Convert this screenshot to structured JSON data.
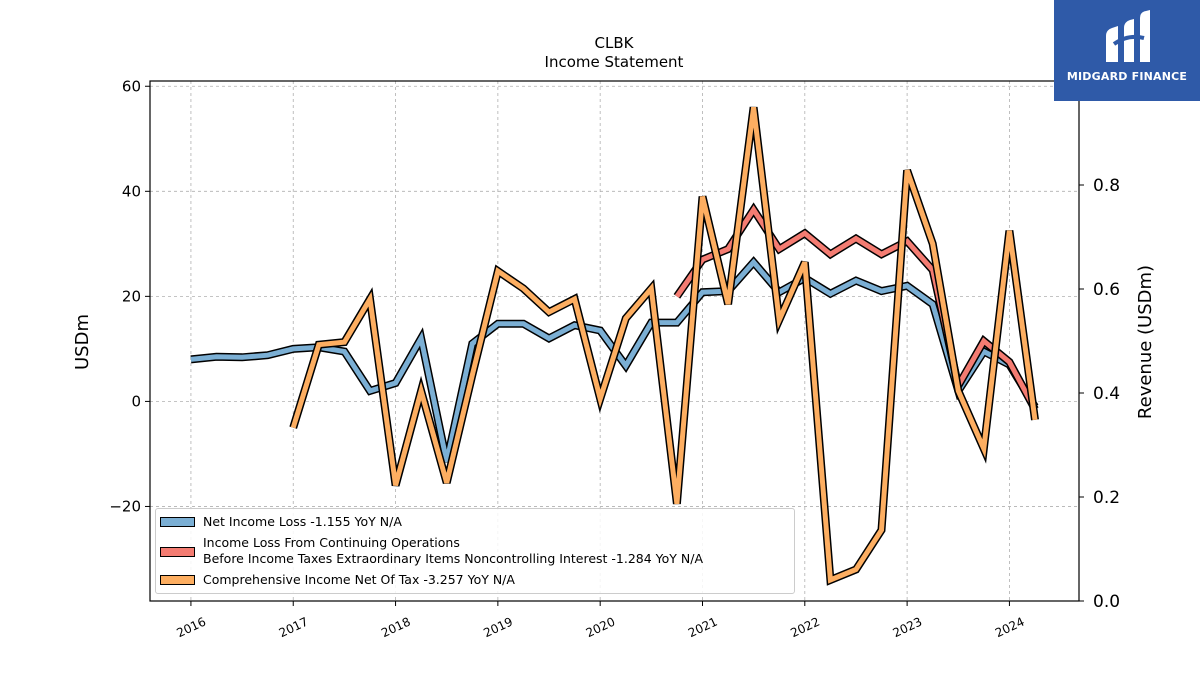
{
  "chart_data": {
    "type": "line",
    "title": "CLBK",
    "subtitle": "Income Statement",
    "ylabel_left": "USDm",
    "ylabel_right": "Revenue (USDm)",
    "ylim_left": [
      -38,
      61
    ],
    "ylim_right": [
      0.0,
      1.0
    ],
    "yticks_left": [
      "60",
      "40",
      "20",
      "0",
      "−20"
    ],
    "yticks_right": [
      "0.8",
      "0.6",
      "0.4",
      "0.2",
      "0.0"
    ],
    "xticks": [
      "2016",
      "2017",
      "2018",
      "2019",
      "2020",
      "2021",
      "2022",
      "2023",
      "2024"
    ],
    "xlim": [
      2015.6,
      2024.68
    ],
    "grid": true,
    "legend_position": "lower-left",
    "series": [
      {
        "name": "Net Income Loss",
        "legend_label": "Net Income Loss  -1.155 YoY N/A",
        "color": "#7bafd4",
        "points": [
          [
            2016.0,
            8.0
          ],
          [
            2016.25,
            8.5
          ],
          [
            2016.5,
            8.4
          ],
          [
            2016.75,
            8.8
          ],
          [
            2017.0,
            10.0
          ],
          [
            2017.25,
            10.3
          ],
          [
            2017.5,
            9.5
          ],
          [
            2017.75,
            2.0
          ],
          [
            2018.0,
            3.5
          ],
          [
            2018.25,
            12.0
          ],
          [
            2018.5,
            -11.5
          ],
          [
            2018.75,
            11.0
          ],
          [
            2019.0,
            14.8
          ],
          [
            2019.25,
            14.8
          ],
          [
            2019.5,
            12.0
          ],
          [
            2019.75,
            14.5
          ],
          [
            2020.0,
            13.5
          ],
          [
            2020.25,
            6.8
          ],
          [
            2020.5,
            15.0
          ],
          [
            2020.75,
            15.0
          ],
          [
            2021.0,
            20.8
          ],
          [
            2021.25,
            21.0
          ],
          [
            2021.5,
            26.5
          ],
          [
            2021.75,
            20.8
          ],
          [
            2022.0,
            23.5
          ],
          [
            2022.25,
            20.5
          ],
          [
            2022.5,
            23.0
          ],
          [
            2022.75,
            21.0
          ],
          [
            2023.0,
            22.0
          ],
          [
            2023.25,
            18.5
          ],
          [
            2023.5,
            2.0
          ],
          [
            2023.75,
            9.5
          ],
          [
            2024.0,
            7.0
          ],
          [
            2024.25,
            -1.0
          ]
        ]
      },
      {
        "name": "Income Loss From Continuing Operations Before Income Taxes Extraordinary Items Noncontrolling Interest",
        "legend_label_line1": "Income Loss From Continuing Operations",
        "legend_label_line2": "Before Income Taxes Extraordinary Items Noncontrolling Interest  -1.284 YoY N/A",
        "color": "#f47c72",
        "points": [
          [
            2020.75,
            20.0
          ],
          [
            2021.0,
            27.0
          ],
          [
            2021.25,
            29.0
          ],
          [
            2021.5,
            36.5
          ],
          [
            2021.75,
            29.0
          ],
          [
            2022.0,
            32.0
          ],
          [
            2022.25,
            28.0
          ],
          [
            2022.5,
            31.0
          ],
          [
            2022.75,
            28.0
          ],
          [
            2023.0,
            30.5
          ],
          [
            2023.25,
            25.0
          ],
          [
            2023.5,
            3.0
          ],
          [
            2023.75,
            11.5
          ],
          [
            2024.0,
            7.5
          ],
          [
            2024.25,
            -1.5
          ]
        ]
      },
      {
        "name": "Comprehensive Income Net Of Tax",
        "legend_label": "Comprehensive Income Net Of Tax  -3.257 YoY N/A",
        "color": "#fdae61",
        "points": [
          [
            2017.0,
            -5.0
          ],
          [
            2017.25,
            10.8
          ],
          [
            2017.5,
            11.3
          ],
          [
            2017.75,
            19.5
          ],
          [
            2018.0,
            -16.0
          ],
          [
            2018.25,
            2.0
          ],
          [
            2018.5,
            -15.5
          ],
          [
            2018.75,
            5.0
          ],
          [
            2019.0,
            24.8
          ],
          [
            2019.25,
            21.5
          ],
          [
            2019.5,
            17.0
          ],
          [
            2019.75,
            19.5
          ],
          [
            2020.0,
            0.5
          ],
          [
            2020.25,
            15.8
          ],
          [
            2020.5,
            21.5
          ],
          [
            2020.75,
            -19.5
          ],
          [
            2021.0,
            39.0
          ],
          [
            2021.25,
            18.5
          ],
          [
            2021.5,
            56.0
          ],
          [
            2021.75,
            15.5
          ],
          [
            2022.0,
            26.5
          ],
          [
            2022.25,
            -34.0
          ],
          [
            2022.5,
            -32.0
          ],
          [
            2022.75,
            -24.5
          ],
          [
            2023.0,
            44.0
          ],
          [
            2023.25,
            30.0
          ],
          [
            2023.5,
            2.0
          ],
          [
            2023.75,
            -9.0
          ],
          [
            2024.0,
            32.5
          ],
          [
            2024.25,
            -3.5
          ]
        ]
      }
    ]
  },
  "logo": {
    "text": "MIDGARD FINANCE"
  }
}
